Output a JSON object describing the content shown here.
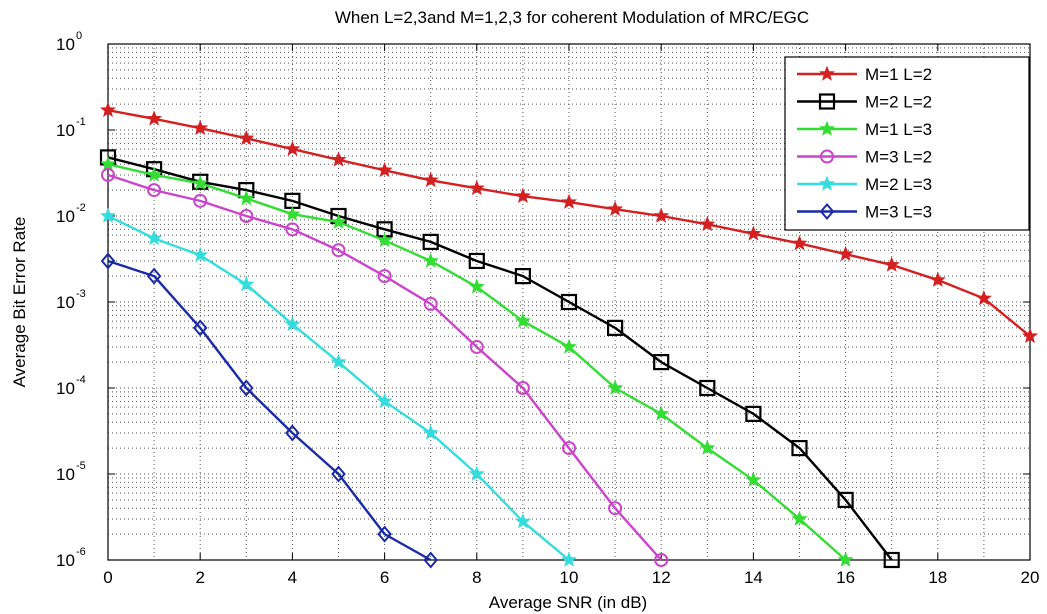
{
  "chart_data": {
    "type": "line",
    "title": "When L=2,3and M=1,2,3 for coherent Modulation of MRC/EGC",
    "xlabel": "Average SNR (in dB)",
    "ylabel": "Average Bit Error Rate",
    "xlim": [
      0,
      20
    ],
    "ylim": [
      1e-06,
      1
    ],
    "yscale": "log",
    "grid": true,
    "legend_position": "top-right",
    "x_ticks": [
      "0",
      "2",
      "4",
      "6",
      "8",
      "10",
      "12",
      "14",
      "16",
      "18",
      "20"
    ],
    "y_ticks": [
      {
        "base": "10",
        "exp": "0",
        "value": 1
      },
      {
        "base": "10",
        "exp": "-1",
        "value": 0.1
      },
      {
        "base": "10",
        "exp": "-2",
        "value": 0.01
      },
      {
        "base": "10",
        "exp": "-3",
        "value": 0.001
      },
      {
        "base": "10",
        "exp": "-4",
        "value": 0.0001
      },
      {
        "base": "10",
        "exp": "-5",
        "value": 1e-05
      },
      {
        "base": "10",
        "exp": "-6",
        "value": 1e-06
      }
    ],
    "series": [
      {
        "name": "M=1 L=2",
        "color": "#d42020",
        "marker": "star",
        "x": [
          0,
          1,
          2,
          3,
          4,
          5,
          6,
          7,
          8,
          9,
          10,
          11,
          12,
          13,
          14,
          15,
          16,
          17,
          18,
          19,
          20
        ],
        "y": [
          0.17,
          0.135,
          0.105,
          0.08,
          0.06,
          0.045,
          0.034,
          0.026,
          0.021,
          0.017,
          0.0145,
          0.012,
          0.01,
          0.008,
          0.0062,
          0.0048,
          0.0036,
          0.0027,
          0.0018,
          0.0011,
          0.0004
        ]
      },
      {
        "name": "M=2 L=2",
        "color": "#000000",
        "marker": "square",
        "x": [
          0,
          1,
          2,
          3,
          4,
          5,
          6,
          7,
          8,
          9,
          10,
          11,
          12,
          13,
          14,
          15,
          16,
          17
        ],
        "y": [
          0.048,
          0.035,
          0.025,
          0.02,
          0.015,
          0.01,
          0.007,
          0.005,
          0.003,
          0.002,
          0.001,
          0.0005,
          0.0002,
          0.0001,
          5e-05,
          2e-05,
          5e-06,
          1e-06
        ]
      },
      {
        "name": "M=1 L=3",
        "color": "#33dd33",
        "marker": "star",
        "x": [
          0,
          1,
          2,
          3,
          4,
          5,
          6,
          7,
          8,
          9,
          10,
          11,
          12,
          13,
          14,
          15,
          16
        ],
        "y": [
          0.04,
          0.03,
          0.024,
          0.016,
          0.0105,
          0.0085,
          0.0052,
          0.003,
          0.0015,
          0.0006,
          0.0003,
          0.0001,
          5e-05,
          2e-05,
          8.5e-06,
          3e-06,
          1e-06
        ]
      },
      {
        "name": "M=3 L=2",
        "color": "#cc44cc",
        "marker": "circle",
        "x": [
          0,
          1,
          2,
          3,
          4,
          5,
          6,
          7,
          8,
          9,
          10,
          11,
          12
        ],
        "y": [
          0.03,
          0.02,
          0.015,
          0.01,
          0.007,
          0.004,
          0.002,
          0.00095,
          0.0003,
          0.0001,
          2e-05,
          4e-06,
          1e-06
        ]
      },
      {
        "name": "M=2 L=3",
        "color": "#33dddd",
        "marker": "star",
        "x": [
          0,
          1,
          2,
          3,
          4,
          5,
          6,
          7,
          8,
          9,
          10
        ],
        "y": [
          0.01,
          0.0055,
          0.0035,
          0.0016,
          0.00055,
          0.0002,
          7e-05,
          3e-05,
          1e-05,
          2.8e-06,
          1e-06
        ]
      },
      {
        "name": "M=3 L=3",
        "color": "#1a2aa8",
        "marker": "diamond",
        "x": [
          0,
          1,
          2,
          3,
          4,
          5,
          6,
          7
        ],
        "y": [
          0.003,
          0.002,
          0.0005,
          0.0001,
          3e-05,
          1e-05,
          2e-06,
          1e-06
        ]
      }
    ]
  }
}
